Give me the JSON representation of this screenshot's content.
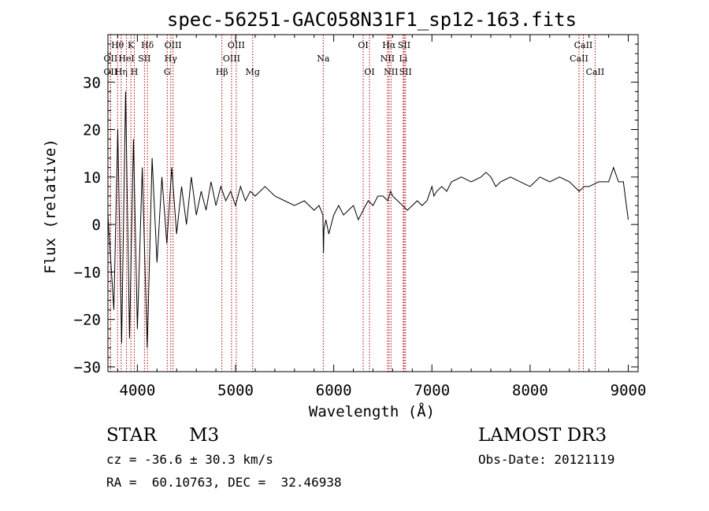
{
  "chart_data": {
    "type": "line",
    "title": "spec-56251-GAC058N31F1_sp12-163.fits",
    "xlabel": "Wavelength (Å)",
    "ylabel": "Flux (relative)",
    "xlim": [
      3700,
      9100
    ],
    "ylim": [
      -31,
      40
    ],
    "xticks": [
      4000,
      5000,
      6000,
      7000,
      8000,
      9000
    ],
    "yticks": [
      -30,
      -20,
      -10,
      0,
      10,
      20,
      30
    ],
    "grid": false,
    "series": [
      {
        "name": "flux",
        "x": [
          3700,
          3760,
          3800,
          3840,
          3880,
          3920,
          3960,
          4000,
          4050,
          4100,
          4150,
          4200,
          4250,
          4300,
          4350,
          4400,
          4450,
          4500,
          4550,
          4600,
          4650,
          4700,
          4750,
          4800,
          4850,
          4900,
          4950,
          5000,
          5050,
          5100,
          5150,
          5200,
          5300,
          5400,
          5500,
          5600,
          5700,
          5800,
          5850,
          5890,
          5895,
          5900,
          5920,
          5950,
          6000,
          6050,
          6100,
          6150,
          6200,
          6250,
          6300,
          6350,
          6400,
          6450,
          6500,
          6550,
          6580,
          6600,
          6650,
          6700,
          6750,
          6800,
          6850,
          6900,
          6950,
          7000,
          7020,
          7050,
          7100,
          7150,
          7200,
          7300,
          7400,
          7500,
          7550,
          7600,
          7650,
          7700,
          7800,
          7900,
          8000,
          8100,
          8200,
          8300,
          8400,
          8500,
          8550,
          8600,
          8700,
          8800,
          8850,
          8900,
          8950,
          9000
        ],
        "y": [
          2,
          -18,
          20,
          -25,
          28,
          -24,
          18,
          -22,
          12,
          -26,
          14,
          -8,
          10,
          -4,
          12,
          -2,
          8,
          0,
          10,
          2,
          7,
          3,
          9,
          4,
          8,
          5,
          7,
          4,
          8,
          5,
          7,
          6,
          8,
          6,
          5,
          4,
          5,
          3,
          4,
          2,
          -6,
          -1,
          1,
          -2,
          2,
          4,
          2,
          3,
          4,
          1,
          3,
          5,
          4,
          6,
          6,
          5,
          7,
          6,
          5,
          4,
          3,
          4,
          5,
          4,
          5,
          8,
          6,
          7,
          8,
          7,
          9,
          10,
          9,
          10,
          11,
          10,
          8,
          9,
          10,
          9,
          8,
          10,
          9,
          10,
          9,
          7,
          8,
          8,
          9,
          9,
          12,
          9,
          9,
          1
        ]
      }
    ],
    "emission_lines": [
      {
        "label": "Hθ",
        "x": 3798,
        "row": 0
      },
      {
        "label": "K",
        "x": 3934,
        "row": 0
      },
      {
        "label": "Hδ",
        "x": 4102,
        "row": 0
      },
      {
        "label": "OIII",
        "x": 4363,
        "row": 0
      },
      {
        "label": "OIII",
        "x": 5007,
        "row": 0
      },
      {
        "label": "OI",
        "x": 6300,
        "row": 0
      },
      {
        "label": "Hα",
        "x": 6563,
        "row": 0
      },
      {
        "label": "SII",
        "x": 6717,
        "row": 0
      },
      {
        "label": "CaII",
        "x": 8542,
        "row": 0
      },
      {
        "label": "OII",
        "x": 3727,
        "row": 1
      },
      {
        "label": "HeI",
        "x": 3889,
        "row": 1
      },
      {
        "label": "SII",
        "x": 4072,
        "row": 1
      },
      {
        "label": "Hγ",
        "x": 4340,
        "row": 1
      },
      {
        "label": "OIII",
        "x": 4959,
        "row": 1
      },
      {
        "label": "Na",
        "x": 5893,
        "row": 1
      },
      {
        "label": "NII",
        "x": 6548,
        "row": 1
      },
      {
        "label": "Li",
        "x": 6708,
        "row": 1
      },
      {
        "label": "CaII",
        "x": 8498,
        "row": 1
      },
      {
        "label": "OII",
        "x": 3727,
        "row": 2
      },
      {
        "label": "Hη",
        "x": 3835,
        "row": 2
      },
      {
        "label": "H",
        "x": 3969,
        "row": 2
      },
      {
        "label": "G",
        "x": 4304,
        "row": 2
      },
      {
        "label": "Hβ",
        "x": 4861,
        "row": 2
      },
      {
        "label": "Mg",
        "x": 5175,
        "row": 2
      },
      {
        "label": "OI",
        "x": 6364,
        "row": 2
      },
      {
        "label": "NII",
        "x": 6583,
        "row": 2
      },
      {
        "label": "SII",
        "x": 6731,
        "row": 2
      },
      {
        "label": "CaII",
        "x": 8662,
        "row": 2
      }
    ]
  },
  "info": {
    "object_type": "STAR",
    "subclass": "M3",
    "survey": "LAMOST DR3",
    "redshift": "cz = -36.6 ± 30.3 km/s",
    "obs_date": "Obs-Date: 20121119",
    "coords": "RA =  60.10763, DEC =  32.46938"
  },
  "colors": {
    "line": "#000000",
    "marker": "#b00000",
    "background": "#ffffff"
  }
}
